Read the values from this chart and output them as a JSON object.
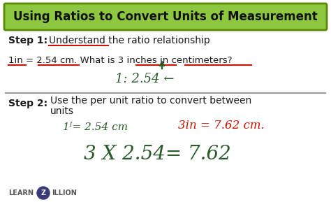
{
  "title": "Using Ratios to Convert Units of Measurement",
  "title_bg": "#8dc63f",
  "title_border": "#5a8a00",
  "bg_color": "#ffffff",
  "outer_bg": "#ffffff",
  "step1_bold": "Step 1:",
  "step2_bold": "Step 2:",
  "step1_text": "Understand the ratio relationship",
  "step2_line1": "Use the per unit ratio to convert between",
  "step2_line2": "units",
  "problem_text": "1in = 2.54 cm. What is 3 inches in centimeters?",
  "handwritten1": "1: 2.54 ←",
  "handwritten2a": "1ᴵ= 2.54 cm",
  "handwritten2b": "3in = 7.62 cm.",
  "handwritten3": "3 X 2.54= 7.62",
  "font_color": "#1a1a1a",
  "red_color": "#cc1100",
  "dark_green": "#2d6a00",
  "hand_color": "#2a5a2a",
  "hand_red": "#cc1100",
  "logo_color": "#3a3a7a"
}
